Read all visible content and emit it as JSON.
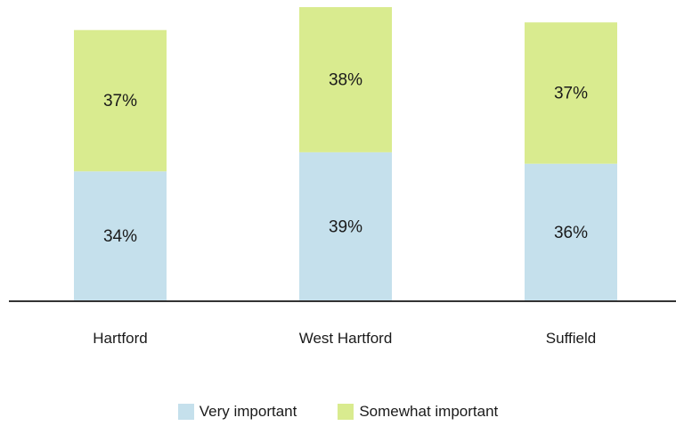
{
  "chart_data": {
    "type": "bar",
    "stacked": true,
    "categories": [
      "Hartford",
      "West Hartford",
      "Suffield"
    ],
    "series": [
      {
        "name": "Very important",
        "values": [
          34,
          39,
          36
        ],
        "color": "#c5e0ec",
        "labels": [
          "34%",
          "39%",
          "36%"
        ]
      },
      {
        "name": "Somewhat important",
        "values": [
          37,
          38,
          37
        ],
        "color": "#d9eb8f",
        "labels": [
          "37%",
          "38%",
          "37%"
        ]
      }
    ],
    "ylim": [
      0,
      77
    ],
    "grid": false,
    "legend_position": "bottom",
    "axis_color": "#333333"
  }
}
